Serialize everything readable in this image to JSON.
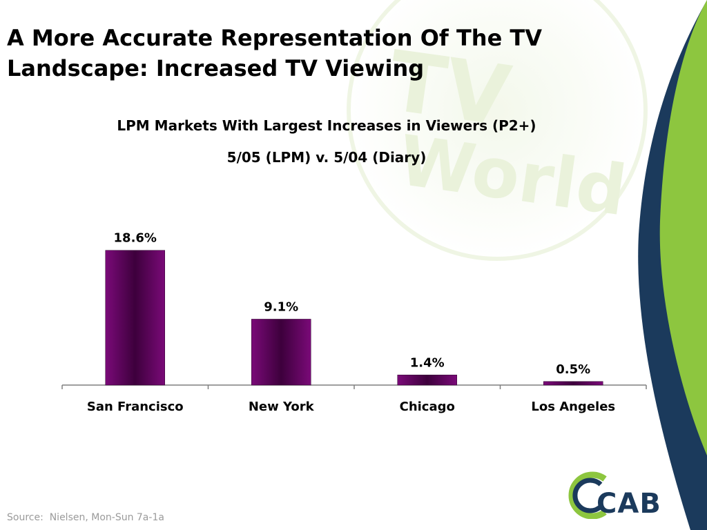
{
  "slide": {
    "title_line1": "A More Accurate Representation Of The TV",
    "title_line2": "Landscape: Increased TV Viewing",
    "source": "Source:  Nielsen, Mon-Sun 7a-1a",
    "logo_text": "CAB",
    "watermark_text": "The TV World"
  },
  "colors": {
    "bar": "#7a0a78",
    "bar_dark": "#3d003c",
    "navy": "#1b3a5c",
    "green": "#8dc63f",
    "source_text": "#9a9a9a"
  },
  "chart_data": {
    "type": "bar",
    "title_line1": "LPM Markets With Largest Increases in Viewers (P2+)",
    "title_line2": "5/05 (LPM) v. 5/04 (Diary)",
    "categories": [
      "San Francisco",
      "New York",
      "Chicago",
      "Los Angeles"
    ],
    "values": [
      18.6,
      9.1,
      1.4,
      0.5
    ],
    "data_labels": [
      "18.6%",
      "9.1%",
      "1.4%",
      "0.5%"
    ],
    "xlabel": "",
    "ylabel": "",
    "ylim": [
      0,
      20
    ],
    "grid": false,
    "legend": "none"
  }
}
